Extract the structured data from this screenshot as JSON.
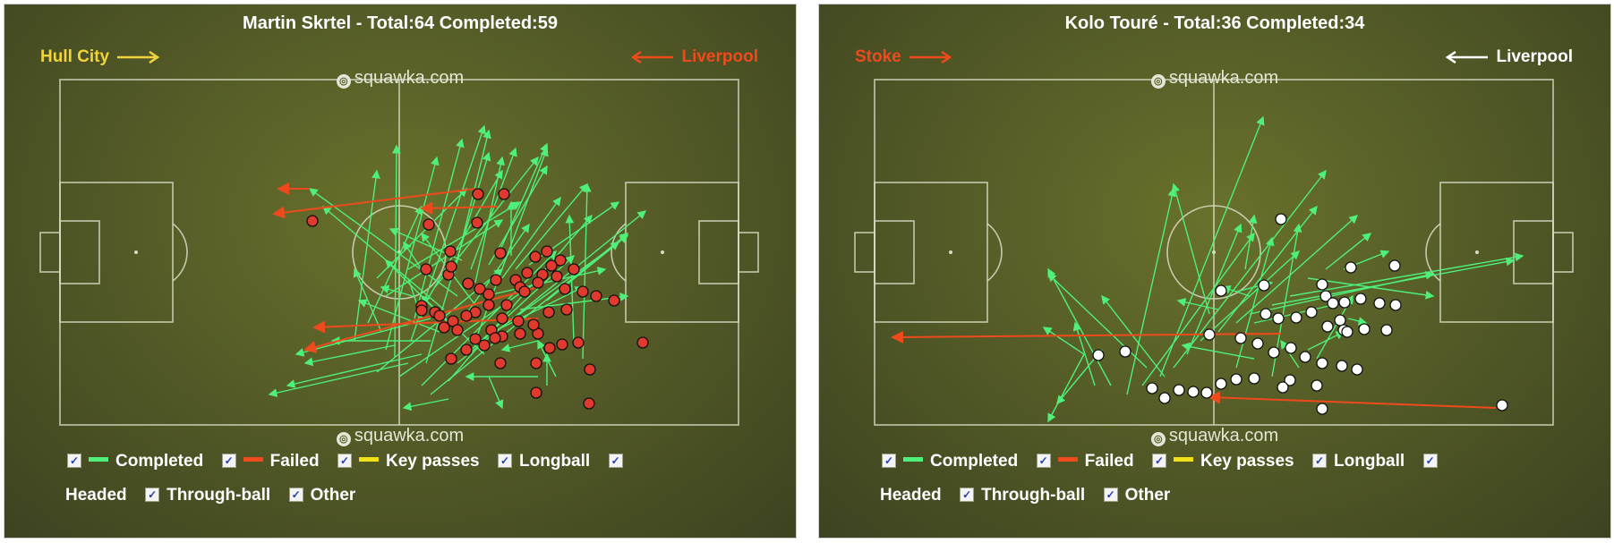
{
  "colors": {
    "completed": "#4ef07a",
    "failed": "#ee4a1c",
    "key_passes": "#f2e11a",
    "left_player_marker": "#e03a2e",
    "right_player_marker": "#ffffff",
    "left_home_color": "#f0d43a",
    "left_away_color": "#ee4a1c",
    "right_home_color": "#ee4a1c",
    "right_away_color": "#ffffff"
  },
  "panels": [
    {
      "title": "Martin Skrtel - Total:64 Completed:59",
      "home_team": "Hull City",
      "away_team": "Liverpool",
      "brand_top": "squawka.com",
      "brand_bottom": "squawka.com",
      "passes": [
        [
          430,
          390,
          487,
          175,
          "c"
        ],
        [
          440,
          398,
          442,
          162,
          "c"
        ],
        [
          458,
          380,
          540,
          140,
          "c"
        ],
        [
          475,
          405,
          545,
          170,
          "c"
        ],
        [
          462,
          355,
          515,
          155,
          "c"
        ],
        [
          470,
          345,
          560,
          190,
          "c"
        ],
        [
          485,
          320,
          600,
          175,
          "c"
        ],
        [
          455,
          300,
          580,
          225,
          "c"
        ],
        [
          430,
          330,
          560,
          245,
          "c"
        ],
        [
          420,
          310,
          520,
          210,
          "c"
        ],
        [
          410,
          360,
          470,
          230,
          "c"
        ],
        [
          395,
          380,
          420,
          190,
          "c"
        ],
        [
          420,
          415,
          560,
          300,
          "c"
        ],
        [
          445,
          420,
          590,
          320,
          "c"
        ],
        [
          470,
          430,
          620,
          280,
          "c"
        ],
        [
          480,
          440,
          700,
          260,
          "c"
        ],
        [
          500,
          425,
          660,
          240,
          "c"
        ],
        [
          510,
          405,
          720,
          235,
          "c"
        ],
        [
          520,
          395,
          640,
          285,
          "c"
        ],
        [
          530,
          380,
          610,
          165,
          "c"
        ],
        [
          545,
          375,
          690,
          270,
          "c"
        ],
        [
          560,
          365,
          650,
          320,
          "c"
        ],
        [
          540,
          330,
          675,
          300,
          "c"
        ],
        [
          520,
          350,
          590,
          250,
          "c"
        ],
        [
          500,
          360,
          430,
          290,
          "c"
        ],
        [
          490,
          370,
          400,
          335,
          "c"
        ],
        [
          480,
          380,
          370,
          380,
          "c"
        ],
        [
          470,
          395,
          320,
          430,
          "c"
        ],
        [
          455,
          405,
          300,
          440,
          "c"
        ],
        [
          440,
          385,
          340,
          405,
          "c"
        ],
        [
          425,
          370,
          395,
          300,
          "c"
        ],
        [
          505,
          310,
          545,
          145,
          "c"
        ],
        [
          525,
          300,
          575,
          165,
          "c"
        ],
        [
          545,
          295,
          610,
          185,
          "c"
        ],
        [
          560,
          310,
          625,
          220,
          "c"
        ],
        [
          575,
          300,
          655,
          205,
          "c"
        ],
        [
          590,
          295,
          690,
          225,
          "c"
        ],
        [
          545,
          420,
          560,
          455,
          "c"
        ],
        [
          500,
          445,
          450,
          455,
          "c"
        ],
        [
          650,
          400,
          655,
          205,
          "c"
        ],
        [
          640,
          380,
          635,
          240,
          "c"
        ],
        [
          610,
          430,
          610,
          395,
          "c"
        ],
        [
          580,
          345,
          700,
          330,
          "c"
        ],
        [
          530,
          340,
          470,
          260,
          "c"
        ],
        [
          510,
          330,
          345,
          210,
          "c"
        ],
        [
          495,
          345,
          360,
          230,
          "c"
        ],
        [
          480,
          355,
          330,
          395,
          "c"
        ],
        [
          600,
          420,
          520,
          420,
          "c"
        ],
        [
          515,
          290,
          435,
          255,
          "c"
        ],
        [
          470,
          300,
          450,
          270,
          "c"
        ],
        [
          455,
          310,
          470,
          355,
          "c"
        ],
        [
          530,
          315,
          560,
          175,
          "c"
        ],
        [
          555,
          285,
          610,
          160,
          "c"
        ],
        [
          570,
          285,
          570,
          225,
          "c"
        ],
        [
          620,
          420,
          600,
          380,
          "c"
        ],
        [
          600,
          380,
          560,
          390,
          "c"
        ],
        [
          610,
          335,
          700,
          262,
          "c"
        ],
        [
          540,
          395,
          470,
          330,
          "c"
        ],
        [
          460,
          330,
          425,
          320,
          "c"
        ],
        [
          345,
          210,
          310,
          210,
          "f"
        ],
        [
          530,
          210,
          305,
          238,
          "f"
        ],
        [
          555,
          230,
          470,
          232,
          "f"
        ],
        [
          600,
          355,
          350,
          365,
          "f"
        ],
        [
          600,
          320,
          340,
          390,
          "f"
        ]
      ],
      "markers": [
        [
          348,
          246
        ],
        [
          533,
          216
        ],
        [
          562,
          216
        ],
        [
          478,
          250
        ],
        [
          532,
          248
        ],
        [
          502,
          280
        ],
        [
          558,
          282
        ],
        [
          475,
          300
        ],
        [
          500,
          306
        ],
        [
          503,
          297
        ],
        [
          522,
          316
        ],
        [
          535,
          322
        ],
        [
          545,
          328
        ],
        [
          553,
          312
        ],
        [
          575,
          312
        ],
        [
          588,
          304
        ],
        [
          605,
          306
        ],
        [
          621,
          308
        ],
        [
          630,
          322
        ],
        [
          650,
          325
        ],
        [
          665,
          330
        ],
        [
          685,
          335
        ],
        [
          625,
          290
        ],
        [
          615,
          296
        ],
        [
          600,
          315
        ],
        [
          580,
          320
        ],
        [
          565,
          340
        ],
        [
          545,
          340
        ],
        [
          530,
          348
        ],
        [
          520,
          352
        ],
        [
          505,
          358
        ],
        [
          495,
          365
        ],
        [
          485,
          348
        ],
        [
          470,
          341
        ],
        [
          470,
          346
        ],
        [
          490,
          352
        ],
        [
          510,
          368
        ],
        [
          530,
          378
        ],
        [
          548,
          368
        ],
        [
          560,
          355
        ],
        [
          578,
          358
        ],
        [
          600,
          372
        ],
        [
          613,
          388
        ],
        [
          627,
          384
        ],
        [
          645,
          382
        ],
        [
          503,
          400
        ],
        [
          520,
          390
        ],
        [
          540,
          385
        ],
        [
          560,
          375
        ],
        [
          580,
          372
        ],
        [
          595,
          362
        ],
        [
          558,
          405
        ],
        [
          598,
          405
        ],
        [
          658,
          412
        ],
        [
          598,
          438
        ],
        [
          657,
          450
        ],
        [
          717,
          382
        ],
        [
          612,
          348
        ],
        [
          632,
          345
        ],
        [
          585,
          325
        ],
        [
          610,
          280
        ],
        [
          597,
          286
        ],
        [
          640,
          300
        ],
        [
          552,
          377
        ]
      ]
    },
    {
      "title": "Kolo Touré - Total:36 Completed:34",
      "home_team": "Stoke",
      "away_team": "Liverpool",
      "brand_top": "squawka.com",
      "brand_bottom": "squawka.com",
      "passes": [
        [
          1222,
          430,
          1200,
          360,
          "c"
        ],
        [
          1240,
          430,
          1170,
          300,
          "c"
        ],
        [
          1258,
          440,
          1310,
          210,
          "c"
        ],
        [
          1275,
          430,
          1400,
          260,
          "c"
        ],
        [
          1295,
          420,
          1410,
          130,
          "c"
        ],
        [
          1310,
          410,
          1480,
          190,
          "c"
        ],
        [
          1325,
          395,
          1385,
          250,
          "c"
        ],
        [
          1340,
          380,
          1450,
          280,
          "c"
        ],
        [
          1360,
          370,
          1470,
          230,
          "c"
        ],
        [
          1380,
          360,
          1515,
          240,
          "c"
        ],
        [
          1395,
          350,
          1600,
          305,
          "c"
        ],
        [
          1420,
          340,
          1690,
          290,
          "c"
        ],
        [
          1440,
          330,
          1700,
          285,
          "c"
        ],
        [
          1460,
          310,
          1600,
          330,
          "c"
        ],
        [
          1480,
          300,
          1530,
          260,
          "c"
        ],
        [
          1500,
          300,
          1550,
          280,
          "c"
        ],
        [
          1395,
          330,
          1365,
          320,
          "c"
        ],
        [
          1380,
          325,
          1420,
          315,
          "c"
        ],
        [
          1360,
          345,
          1315,
          335,
          "c"
        ],
        [
          1350,
          350,
          1310,
          205,
          "c"
        ],
        [
          1380,
          410,
          1420,
          265,
          "c"
        ],
        [
          1420,
          420,
          1450,
          250,
          "c"
        ],
        [
          1450,
          410,
          1430,
          380,
          "c"
        ],
        [
          1400,
          400,
          1320,
          385,
          "c"
        ],
        [
          1400,
          360,
          1510,
          335,
          "c"
        ],
        [
          1460,
          390,
          1500,
          370,
          "c"
        ],
        [
          1470,
          400,
          1510,
          330,
          "c"
        ],
        [
          1300,
          420,
          1230,
          330,
          "c"
        ],
        [
          1280,
          410,
          1170,
          305,
          "c"
        ],
        [
          1210,
          395,
          1165,
          365,
          "c"
        ],
        [
          1210,
          395,
          1170,
          470,
          "c"
        ],
        [
          1230,
          390,
          1180,
          450,
          "c"
        ],
        [
          1505,
          355,
          1525,
          360,
          "c"
        ],
        [
          1390,
          300,
          1400,
          240,
          "c"
        ],
        [
          1430,
          372,
          996,
          376,
          "f"
        ],
        [
          1670,
          455,
          1350,
          443,
          "f"
        ]
      ],
      "markers": [
        [
          1430,
          244
        ],
        [
          1508,
          298
        ],
        [
          1557,
          296
        ],
        [
          1476,
          317
        ],
        [
          1363,
          324
        ],
        [
          1411,
          318
        ],
        [
          1480,
          330
        ],
        [
          1488,
          338
        ],
        [
          1501,
          337
        ],
        [
          1519,
          333
        ],
        [
          1540,
          338
        ],
        [
          1558,
          340
        ],
        [
          1413,
          350
        ],
        [
          1427,
          355
        ],
        [
          1447,
          354
        ],
        [
          1464,
          348
        ],
        [
          1482,
          364
        ],
        [
          1496,
          357
        ],
        [
          1500,
          368
        ],
        [
          1504,
          370
        ],
        [
          1523,
          367
        ],
        [
          1548,
          368
        ],
        [
          1350,
          373
        ],
        [
          1385,
          377
        ],
        [
          1404,
          383
        ],
        [
          1422,
          393
        ],
        [
          1441,
          388
        ],
        [
          1457,
          398
        ],
        [
          1476,
          405
        ],
        [
          1498,
          408
        ],
        [
          1515,
          412
        ],
        [
          1226,
          396
        ],
        [
          1256,
          392
        ],
        [
          1286,
          433
        ],
        [
          1300,
          444
        ],
        [
          1316,
          435
        ],
        [
          1332,
          437
        ],
        [
          1347,
          438
        ],
        [
          1363,
          428
        ],
        [
          1380,
          423
        ],
        [
          1400,
          422
        ],
        [
          1440,
          424
        ],
        [
          1470,
          430
        ],
        [
          1476,
          456
        ],
        [
          1432,
          432
        ],
        [
          1677,
          452
        ]
      ]
    }
  ],
  "legend": {
    "completed": "Completed",
    "failed": "Failed",
    "key_passes": "Key passes",
    "longball": "Longball",
    "headed": "Headed",
    "through_ball": "Through-ball",
    "other": "Other",
    "check": "✓"
  }
}
